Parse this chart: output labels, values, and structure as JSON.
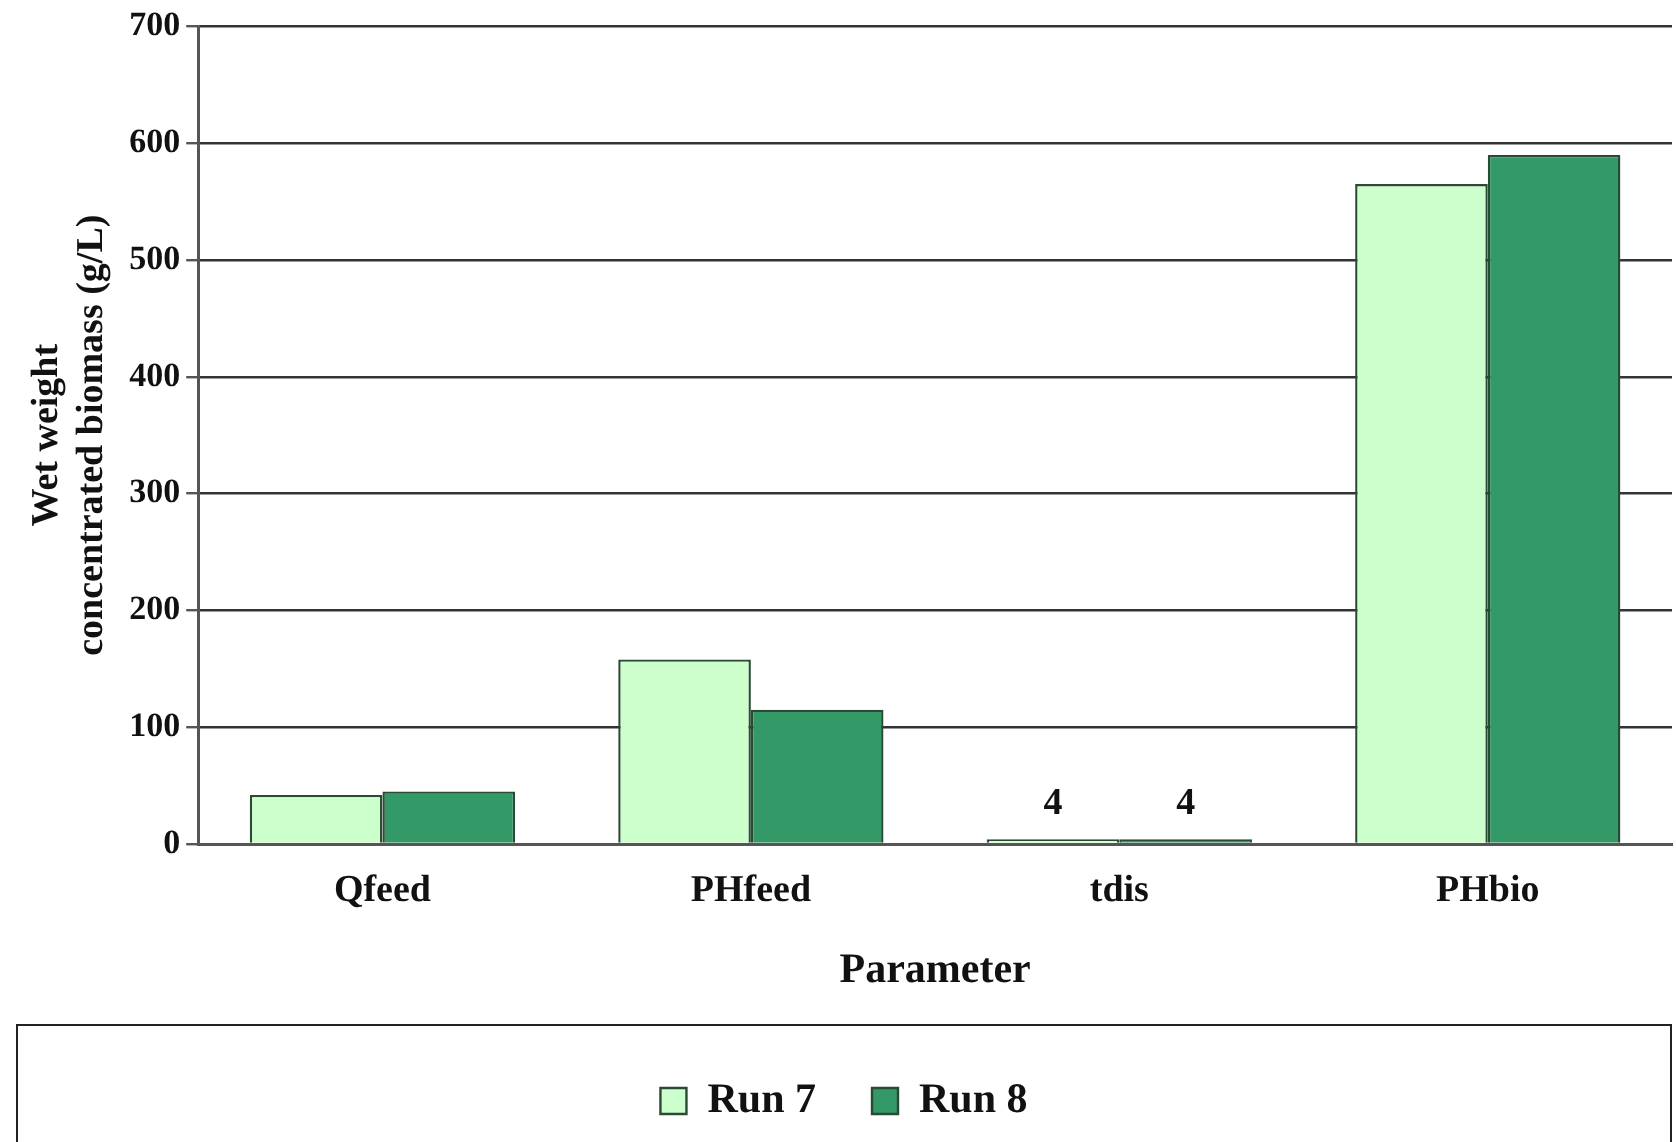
{
  "chart_data": {
    "type": "bar",
    "xlabel": "Parameter",
    "ylabel": "Wet weight\nconcentrated biomass (g/L)",
    "categories": [
      "Qfeed",
      "PHfeed",
      "tdis",
      "PHbio"
    ],
    "series": [
      {
        "name": "Run 7",
        "color": "#ccffcc",
        "values": [
          42,
          158,
          4,
          565
        ],
        "value_labels": [
          null,
          null,
          "4",
          null
        ]
      },
      {
        "name": "Run 8",
        "color": "#339966",
        "values": [
          45,
          115,
          4,
          590
        ],
        "value_labels": [
          null,
          null,
          "4",
          null
        ]
      }
    ],
    "ylim": [
      0,
      700
    ],
    "yticks": [
      0,
      100,
      200,
      300,
      400,
      500,
      600,
      700
    ],
    "grid": "y",
    "legend": "bottom"
  }
}
